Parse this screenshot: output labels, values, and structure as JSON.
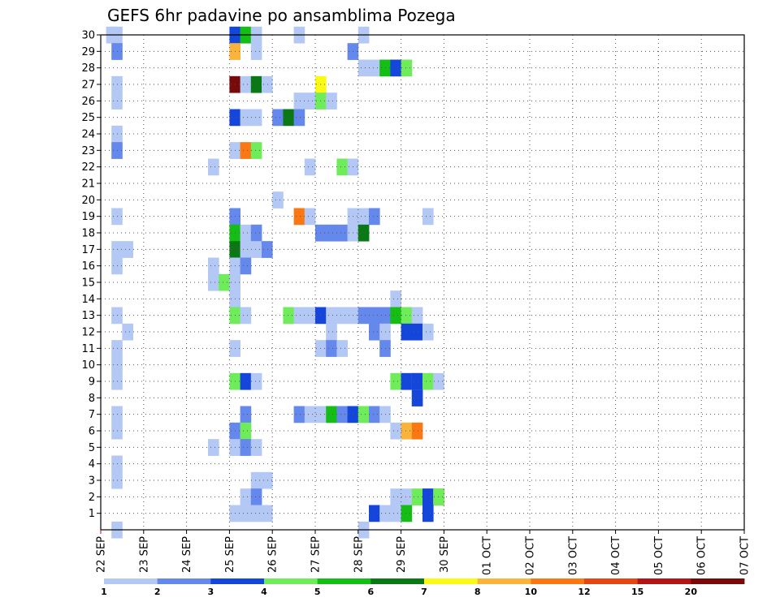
{
  "chart_data": {
    "type": "heatmap",
    "title": "GEFS 6hr padavine po ansamblima Pozega",
    "xlabel": "",
    "ylabel": "",
    "x_ticks": [
      "22 SEP",
      "23 SEP",
      "24 SEP",
      "25 SEP",
      "26 SEP",
      "27 SEP",
      "28 SEP",
      "29 SEP",
      "30 SEP",
      "01 OCT",
      "02 OCT",
      "03 OCT",
      "04 OCT",
      "05 OCT",
      "06 OCT",
      "07 OCT"
    ],
    "y_ticks": [
      "1",
      "2",
      "3",
      "4",
      "5",
      "6",
      "7",
      "8",
      "9",
      "10",
      "11",
      "12",
      "13",
      "14",
      "15",
      "16",
      "17",
      "18",
      "19",
      "20",
      "21",
      "22",
      "23",
      "24",
      "25",
      "26",
      "27",
      "28",
      "29",
      "30"
    ],
    "x_range_hours": [
      0,
      360
    ],
    "time_step_hours": 6,
    "y_range": [
      0,
      30
    ],
    "grid": true,
    "legend": {
      "placement": "bottom",
      "thresholds": [
        "1",
        "2",
        "3",
        "4",
        "5",
        "6",
        "7",
        "8",
        "10",
        "12",
        "15",
        "20"
      ],
      "colors": [
        "#b4c8f5",
        "#6488ec",
        "#1446dc",
        "#6eec5a",
        "#14be14",
        "#0a7814",
        "#fafa14",
        "#fab43c",
        "#fa7814",
        "#e64614",
        "#b41414",
        "#780a0a"
      ]
    },
    "cells": [
      [
        30,
        0.5,
        0
      ],
      [
        30,
        1,
        0
      ],
      [
        30,
        12,
        2
      ],
      [
        30,
        13,
        4
      ],
      [
        30,
        14,
        0
      ],
      [
        30,
        18,
        0
      ],
      [
        30,
        24,
        0
      ],
      [
        29,
        1,
        1
      ],
      [
        29,
        12,
        7
      ],
      [
        29,
        14,
        0
      ],
      [
        29,
        23,
        1
      ],
      [
        28,
        24,
        0
      ],
      [
        28,
        25,
        0
      ],
      [
        28,
        26,
        4
      ],
      [
        28,
        27,
        2
      ],
      [
        28,
        28,
        3
      ],
      [
        27,
        1,
        0
      ],
      [
        27,
        12,
        11
      ],
      [
        27,
        13,
        0
      ],
      [
        27,
        14,
        5
      ],
      [
        27,
        15,
        0
      ],
      [
        27,
        20,
        6
      ],
      [
        26,
        1,
        0
      ],
      [
        26,
        18,
        0
      ],
      [
        26,
        19,
        0
      ],
      [
        26,
        20,
        3
      ],
      [
        26,
        21,
        0
      ],
      [
        25,
        12,
        2
      ],
      [
        25,
        13,
        0
      ],
      [
        25,
        14,
        0
      ],
      [
        25,
        16,
        1
      ],
      [
        25,
        17,
        5
      ],
      [
        25,
        18,
        1
      ],
      [
        24,
        1,
        0
      ],
      [
        23,
        1,
        1
      ],
      [
        23,
        12,
        0
      ],
      [
        23,
        13,
        8
      ],
      [
        23,
        14,
        3
      ],
      [
        22,
        10,
        0
      ],
      [
        22,
        19,
        0
      ],
      [
        22,
        22,
        3
      ],
      [
        22,
        23,
        0
      ],
      [
        20,
        16,
        0
      ],
      [
        19,
        1,
        0
      ],
      [
        19,
        12,
        1
      ],
      [
        19,
        18,
        8
      ],
      [
        19,
        19,
        0
      ],
      [
        19,
        23,
        0
      ],
      [
        19,
        24,
        0
      ],
      [
        19,
        25,
        1
      ],
      [
        19,
        30,
        0
      ],
      [
        18,
        12,
        4
      ],
      [
        18,
        13,
        0
      ],
      [
        18,
        14,
        1
      ],
      [
        18,
        20,
        1
      ],
      [
        18,
        21,
        1
      ],
      [
        18,
        22,
        1
      ],
      [
        18,
        23,
        0
      ],
      [
        18,
        24,
        5
      ],
      [
        17,
        1,
        0
      ],
      [
        17,
        2,
        0
      ],
      [
        17,
        12,
        5
      ],
      [
        17,
        13,
        0
      ],
      [
        17,
        14,
        0
      ],
      [
        17,
        15,
        1
      ],
      [
        16,
        1,
        0
      ],
      [
        16,
        10,
        0
      ],
      [
        16,
        12,
        0
      ],
      [
        16,
        13,
        1
      ],
      [
        15,
        10,
        0
      ],
      [
        15,
        11,
        3
      ],
      [
        15,
        12,
        0
      ],
      [
        14,
        12,
        0
      ],
      [
        14,
        27,
        0
      ],
      [
        13,
        1,
        0
      ],
      [
        13,
        12,
        3
      ],
      [
        13,
        13,
        0
      ],
      [
        13,
        17,
        3
      ],
      [
        13,
        18,
        0
      ],
      [
        13,
        19,
        0
      ],
      [
        13,
        20,
        2
      ],
      [
        13,
        21,
        0
      ],
      [
        13,
        22,
        0
      ],
      [
        13,
        23,
        0
      ],
      [
        13,
        24,
        1
      ],
      [
        13,
        25,
        1
      ],
      [
        13,
        26,
        1
      ],
      [
        13,
        27,
        4
      ],
      [
        13,
        28,
        3
      ],
      [
        13,
        29,
        0
      ],
      [
        12,
        2,
        0
      ],
      [
        12,
        21,
        0
      ],
      [
        12,
        25,
        1
      ],
      [
        12,
        26,
        0
      ],
      [
        12,
        28,
        2
      ],
      [
        12,
        29,
        2
      ],
      [
        12,
        30,
        0
      ],
      [
        11,
        1,
        0
      ],
      [
        11,
        12,
        0
      ],
      [
        11,
        20,
        0
      ],
      [
        11,
        21,
        1
      ],
      [
        11,
        22,
        0
      ],
      [
        11,
        26,
        1
      ],
      [
        10,
        1,
        0
      ],
      [
        9,
        1,
        0
      ],
      [
        9,
        12,
        3
      ],
      [
        9,
        13,
        2
      ],
      [
        9,
        14,
        0
      ],
      [
        9,
        27,
        3
      ],
      [
        9,
        28,
        2
      ],
      [
        9,
        29,
        1
      ],
      [
        9,
        29,
        2
      ],
      [
        9,
        30,
        3
      ],
      [
        9,
        31,
        0
      ],
      [
        8,
        29,
        3
      ],
      [
        8,
        29,
        2
      ],
      [
        7,
        1,
        0
      ],
      [
        7,
        13,
        1
      ],
      [
        7,
        18,
        1
      ],
      [
        7,
        19,
        0
      ],
      [
        7,
        20,
        0
      ],
      [
        7,
        21,
        4
      ],
      [
        7,
        22,
        1
      ],
      [
        7,
        23,
        2
      ],
      [
        7,
        24,
        3
      ],
      [
        7,
        25,
        1
      ],
      [
        7,
        26,
        0
      ],
      [
        6,
        1,
        0
      ],
      [
        6,
        12,
        1
      ],
      [
        6,
        13,
        3
      ],
      [
        6,
        27,
        0
      ],
      [
        6,
        28,
        7
      ],
      [
        6,
        29,
        8
      ],
      [
        5,
        10,
        0
      ],
      [
        5,
        12,
        0
      ],
      [
        5,
        13,
        1
      ],
      [
        5,
        14,
        0
      ],
      [
        4,
        1,
        0
      ],
      [
        3,
        1,
        0
      ],
      [
        3,
        14,
        0
      ],
      [
        3,
        15,
        0
      ],
      [
        2,
        13,
        0
      ],
      [
        2,
        14,
        1
      ],
      [
        2,
        27,
        0
      ],
      [
        2,
        28,
        0
      ],
      [
        2,
        29,
        3
      ],
      [
        2,
        30,
        1
      ],
      [
        2,
        30,
        2
      ],
      [
        2,
        31,
        8
      ],
      [
        2,
        31,
        3
      ],
      [
        1,
        12,
        0
      ],
      [
        1,
        13,
        0
      ],
      [
        1,
        14,
        0
      ],
      [
        1,
        15,
        0
      ],
      [
        1,
        25,
        2
      ],
      [
        1,
        26,
        0
      ],
      [
        1,
        27,
        0
      ],
      [
        1,
        28,
        4
      ],
      [
        1,
        30,
        2
      ],
      [
        0,
        1,
        0
      ],
      [
        0,
        24,
        0
      ]
    ]
  }
}
